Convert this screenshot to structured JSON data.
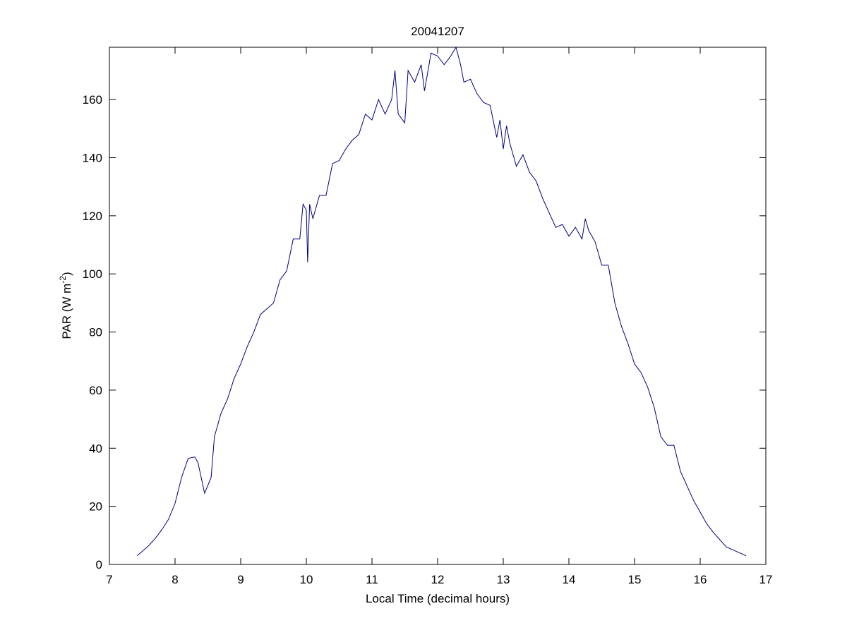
{
  "chart_data": {
    "type": "line",
    "title": "20041207",
    "xlabel": "Local Time (decimal hours)",
    "ylabel": [
      "PAR (W m",
      "-2",
      ")"
    ],
    "x": [
      7.42,
      7.5,
      7.6,
      7.7,
      7.8,
      7.9,
      8.0,
      8.1,
      8.2,
      8.3,
      8.35,
      8.45,
      8.55,
      8.6,
      8.7,
      8.8,
      8.9,
      9.0,
      9.1,
      9.2,
      9.3,
      9.4,
      9.5,
      9.6,
      9.7,
      9.8,
      9.9,
      9.95,
      10.0,
      10.02,
      10.05,
      10.1,
      10.2,
      10.3,
      10.4,
      10.5,
      10.6,
      10.7,
      10.8,
      10.9,
      11.0,
      11.1,
      11.2,
      11.3,
      11.35,
      11.4,
      11.5,
      11.55,
      11.65,
      11.75,
      11.8,
      11.9,
      12.0,
      12.1,
      12.2,
      12.28,
      12.35,
      12.4,
      12.5,
      12.6,
      12.7,
      12.8,
      12.9,
      12.95,
      13.0,
      13.05,
      13.1,
      13.2,
      13.3,
      13.4,
      13.5,
      13.6,
      13.7,
      13.8,
      13.9,
      14.0,
      14.1,
      14.2,
      14.25,
      14.3,
      14.4,
      14.5,
      14.6,
      14.7,
      14.8,
      14.9,
      15.0,
      15.1,
      15.2,
      15.3,
      15.4,
      15.5,
      15.6,
      15.7,
      15.8,
      15.9,
      16.0,
      16.1,
      16.2,
      16.3,
      16.4,
      16.5,
      16.6,
      16.7
    ],
    "series": [
      {
        "name": "PAR",
        "color": "#00007f",
        "values": [
          3,
          4.5,
          6.5,
          9,
          12,
          15.5,
          21,
          30,
          36.5,
          37,
          35,
          24.5,
          30,
          44,
          52,
          57,
          64,
          69,
          75,
          80,
          86,
          88,
          90,
          98,
          101,
          112,
          112,
          124,
          122,
          104,
          124,
          119,
          127,
          127,
          138,
          139,
          143,
          146,
          148,
          155,
          153,
          160,
          155,
          160,
          170,
          155,
          152,
          170,
          166,
          172,
          163,
          176,
          175,
          172,
          175,
          178,
          172,
          166,
          167,
          162,
          159,
          158,
          147,
          153,
          143,
          151,
          145,
          137,
          141,
          135,
          132,
          126,
          121,
          116,
          117,
          113,
          116,
          112,
          119,
          115,
          111,
          103,
          103,
          90,
          82,
          76,
          69,
          66,
          61,
          54,
          44,
          41,
          41,
          32,
          27,
          22,
          18,
          14,
          11,
          8.5,
          6,
          5,
          4,
          3
        ]
      }
    ],
    "xlim": [
      7,
      17
    ],
    "xticks": [
      7,
      8,
      9,
      10,
      11,
      12,
      13,
      14,
      15,
      16,
      17
    ],
    "ylim": [
      0,
      178
    ],
    "yticks": [
      0,
      20,
      40,
      60,
      80,
      100,
      120,
      140,
      160
    ],
    "grid": false
  }
}
